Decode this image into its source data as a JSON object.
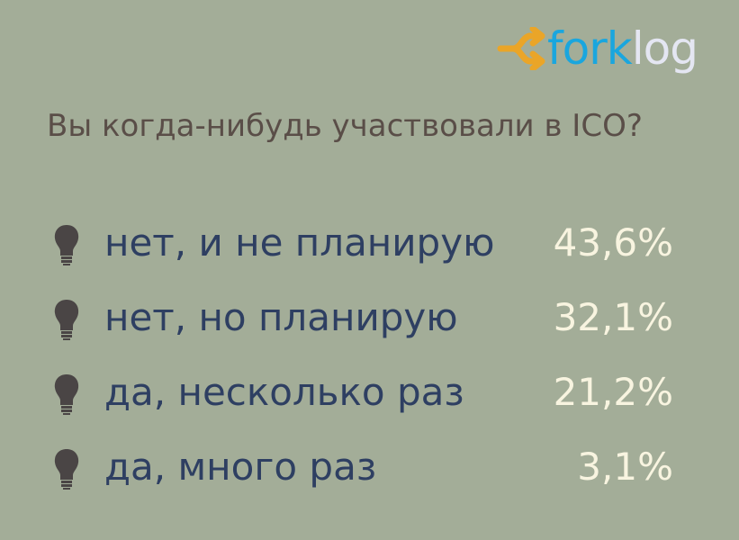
{
  "logo": {
    "text_fork": "fork",
    "text_log": "log",
    "colors": {
      "arrow": "#eaa528",
      "fork": "#1aa6de",
      "log": "#e4e6f2"
    }
  },
  "title": "Вы когда-нибудь участвовали в ICO?",
  "chart_data": {
    "type": "table",
    "title": "Вы когда-нибудь участвовали в ICO?",
    "categories": [
      "нет, и не планирую",
      "нет, но планирую",
      "да, несколько раз",
      "да, много раз"
    ],
    "values": [
      43.6,
      32.1,
      21.2,
      3.1
    ],
    "value_labels": [
      "43,6%",
      "32,1%",
      "21,2%",
      "3,1%"
    ],
    "bullet_icon": "lightbulb-icon"
  },
  "colors": {
    "background": "#a3ad98",
    "title": "#5a4e48",
    "label": "#2e3f62",
    "value": "#f8f4e0",
    "bulb": "#4a4545"
  }
}
